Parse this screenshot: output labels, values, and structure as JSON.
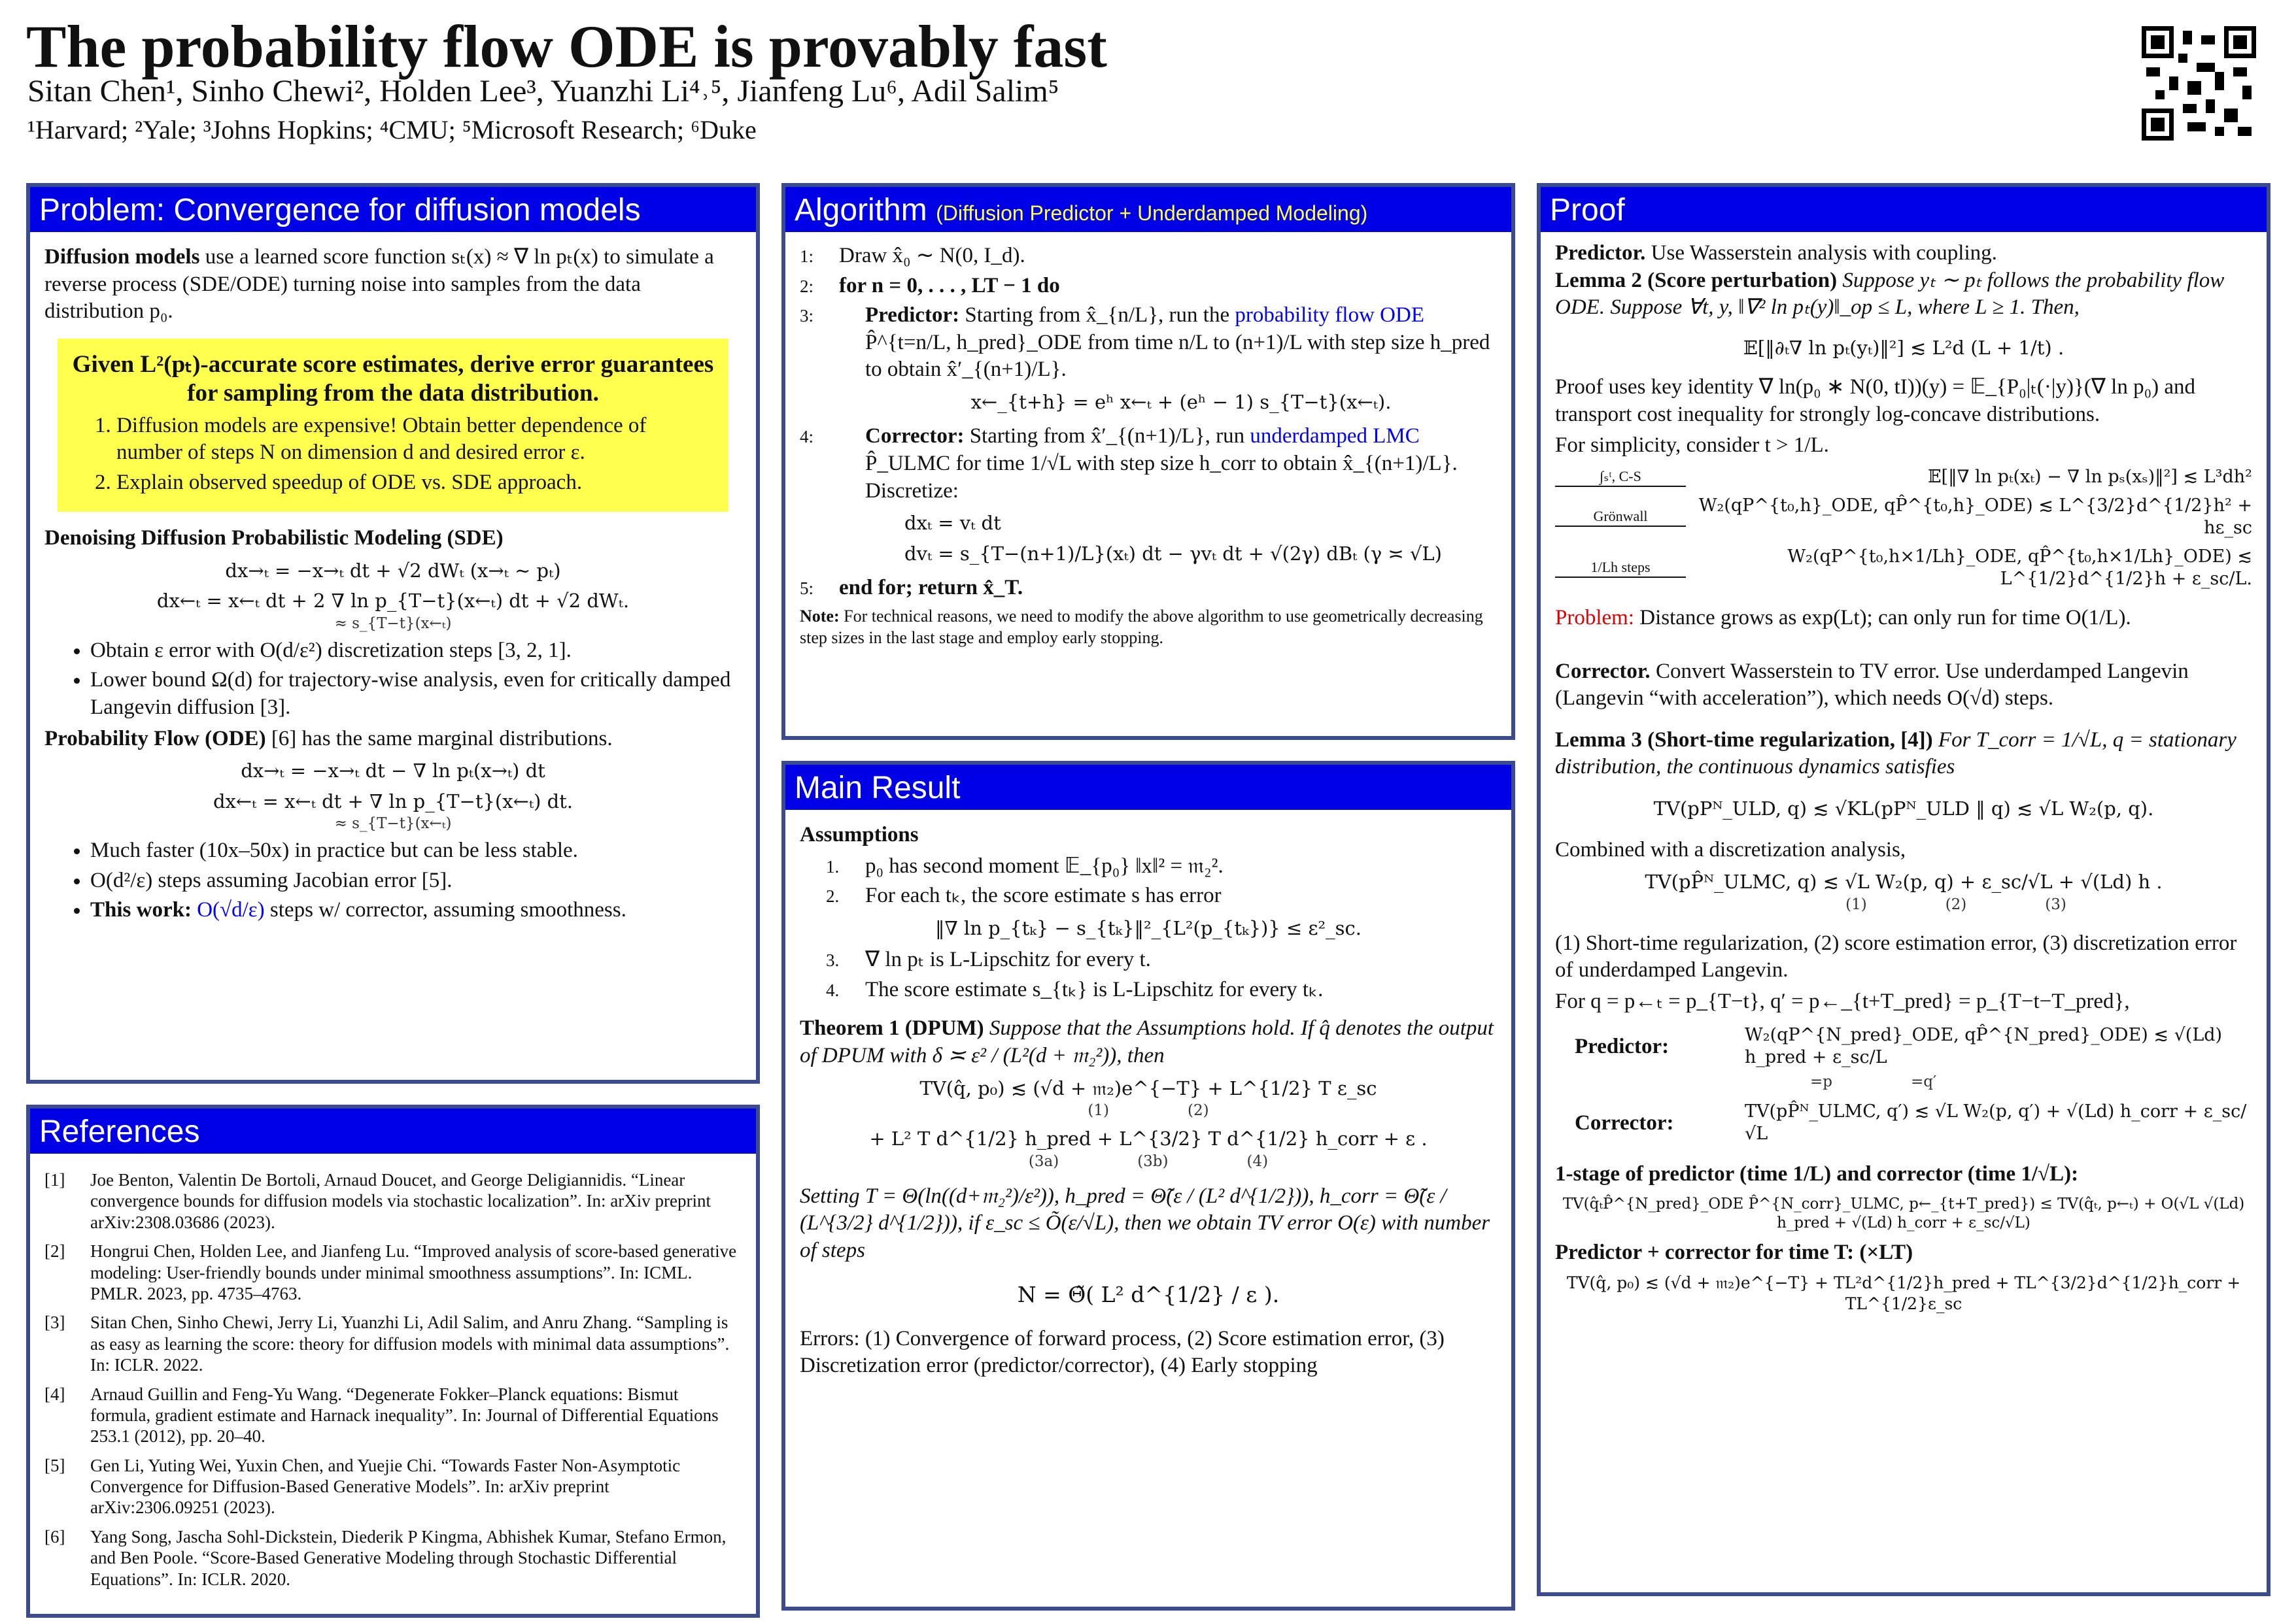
{
  "header": {
    "title": "The probability flow ODE is provably fast",
    "authors": "Sitan Chen¹, Sinho Chewi², Holden Lee³, Yuanzhi Li⁴˒⁵, Jianfeng Lu⁶, Adil Salim⁵",
    "affiliations": "¹Harvard; ²Yale; ³Johns Hopkins; ⁴CMU; ⁵Microsoft Research; ⁶Duke"
  },
  "problem": {
    "title": "Problem: Convergence for diffusion models",
    "intro_lead": "Diffusion models",
    "intro": "use a learned score function sₜ(x) ≈ ∇ ln pₜ(x) to simulate a reverse process (SDE/ODE) turning noise into samples from the data distribution p₀.",
    "highlight_heading": "Given L²(pₜ)-accurate score estimates, derive error guarantees for sampling from the data distribution.",
    "highlight_items": [
      "Diffusion models are expensive! Obtain better dependence of number of steps N on dimension d and desired error ε.",
      "Explain observed speedup of ODE vs. SDE approach."
    ],
    "ddpm_heading": "Denoising Diffusion Probabilistic Modeling (SDE)",
    "ddpm_equations": [
      "dx→ₜ = −x→ₜ dt + √2 dWₜ      (x→ₜ ∼ pₜ)",
      "dx←ₜ = x←ₜ dt + 2 ∇ ln p_{T−t}(x←ₜ) dt + √2 dWₜ."
    ],
    "ddpm_brace": "≈ s_{T−t}(x←ₜ)",
    "ddpm_bullets": [
      "Obtain ε error with O(d/ε²) discretization steps [3, 2, 1].",
      "Lower bound Ω(d) for trajectory-wise analysis, even for critically damped Langevin diffusion [3]."
    ],
    "pf_heading": "Probability Flow (ODE)",
    "pf_heading_rest": "[6] has the same marginal distributions.",
    "pf_equations": [
      "dx→ₜ = −x→ₜ dt − ∇ ln pₜ(x→ₜ) dt",
      "dx←ₜ = x←ₜ dt + ∇ ln p_{T−t}(x←ₜ) dt."
    ],
    "pf_brace": "≈ s_{T−t}(x←ₜ)",
    "pf_bullets": [
      "Much faster (10x–50x) in practice but can be less stable.",
      "O(d²/ε) steps assuming Jacobian error [5]."
    ],
    "this_work_lead": "This work:",
    "this_work_rate": "O(√d/ε)",
    "this_work_text": "steps w/ corrector, assuming smoothness."
  },
  "references": {
    "title": "References",
    "items": [
      {
        "number": "[1]",
        "text": "Joe Benton, Valentin De Bortoli, Arnaud Doucet, and George Deligiannidis. “Linear convergence bounds for diffusion models via stochastic localization”. In: arXiv preprint arXiv:2308.03686 (2023)."
      },
      {
        "number": "[2]",
        "text": "Hongrui Chen, Holden Lee, and Jianfeng Lu. “Improved analysis of score-based generative modeling: User-friendly bounds under minimal smoothness assumptions”. In: ICML. PMLR. 2023, pp. 4735–4763."
      },
      {
        "number": "[3]",
        "text": "Sitan Chen, Sinho Chewi, Jerry Li, Yuanzhi Li, Adil Salim, and Anru Zhang. “Sampling is as easy as learning the score: theory for diffusion models with minimal data assumptions”. In: ICLR. 2022."
      },
      {
        "number": "[4]",
        "text": "Arnaud Guillin and Feng-Yu Wang. “Degenerate Fokker–Planck equations: Bismut formula, gradient estimate and Harnack inequality”. In: Journal of Differential Equations 253.1 (2012), pp. 20–40."
      },
      {
        "number": "[5]",
        "text": "Gen Li, Yuting Wei, Yuxin Chen, and Yuejie Chi. “Towards Faster Non-Asymptotic Convergence for Diffusion-Based Generative Models”. In: arXiv preprint arXiv:2306.09251 (2023)."
      },
      {
        "number": "[6]",
        "text": "Yang Song, Jascha Sohl-Dickstein, Diederik P Kingma, Abhishek Kumar, Stefano Ermon, and Ben Poole. “Score-Based Generative Modeling through Stochastic Differential Equations”. In: ICLR. 2020."
      }
    ]
  },
  "algorithm": {
    "title": "Algorithm",
    "subtitle": "(Diffusion Predictor + Underdamped Modeling)",
    "line1": "Draw x̂₀ ∼ N(0, I_d).",
    "line2": "for n = 0, . . . , LT − 1 do",
    "line3_lead": "Predictor:",
    "line3_a": "Starting from x̂_{n/L}, run the",
    "line3_link": "probability flow ODE",
    "line3_b": "P̂^{t=n/L, h_pred}_ODE from time n/L to (n+1)/L with step size h_pred to obtain x̂′_{(n+1)/L}.",
    "line3_eq": "x←_{t+h} = eʰ x←ₜ + (eʰ − 1) s_{T−t}(x←ₜ).",
    "line4_lead": "Corrector:",
    "line4_a": "Starting from x̂′_{(n+1)/L}, run",
    "line4_link": "underdamped LMC",
    "line4_b": "P̂_ULMC for time 1/√L with step size h_corr to obtain x̂_{(n+1)/L}. Discretize:",
    "line4_equations": [
      "dxₜ = vₜ dt",
      "dvₜ = s_{T−(n+1)/L}(xₜ) dt − γvₜ dt + √(2γ) dBₜ     (γ ≍ √L)"
    ],
    "line5": "end for; return x̂_T.",
    "line_numbers": [
      "1:",
      "2:",
      "3:",
      "4:",
      "5:"
    ],
    "note_lead": "Note:",
    "note": "For technical reasons, we need to modify the above algorithm to use geometrically decreasing step sizes in the last stage and employ early stopping."
  },
  "main_result": {
    "title": "Main Result",
    "assumptions_heading": "Assumptions",
    "assumption_numbers": [
      "1.",
      "2.",
      "3.",
      "4."
    ],
    "assumptions": [
      "p₀ has second moment 𝔼_{p₀} ‖x‖² = 𝔪₂².",
      "For each tₖ, the score estimate s has error",
      "∇ ln pₜ is L-Lipschitz for every t.",
      "The score estimate s_{tₖ} is L-Lipschitz for every tₖ."
    ],
    "assumption_eq": "‖∇ ln p_{tₖ} − s_{tₖ}‖²_{L²(p_{tₖ})} ≤ ε²_sc.",
    "theorem_lead": "Theorem 1 (DPUM)",
    "theorem_text": "Suppose that the Assumptions hold. If q̂ denotes the output of DPUM with δ ≍ ε² / (L²(d + 𝔪₂²)), then",
    "theorem_eq1": "TV(q̂, p₀) ≲ (√d + 𝔪₂)e^{−T} + L^{1/2} T ε_sc",
    "theorem_labels1": [
      "(1)",
      "(2)"
    ],
    "theorem_eq2": "+ L² T d^{1/2} h_pred + L^{3/2} T d^{1/2} h_corr + ε .",
    "theorem_labels2": [
      "(3a)",
      "(3b)",
      "(4)"
    ],
    "setting": "Setting T = Θ(ln((d+𝔪₂²)/ε²)), h_pred = Θ̃(ε / (L² d^{1/2})), h_corr = Θ̃(ε / (L^{3/2} d^{1/2})), if ε_sc ≤ Õ(ε/√L), then we obtain TV error O(ε) with number of steps",
    "steps_eq": "N = Θ̃( L² d^{1/2} / ε ).",
    "errors": "Errors: (1) Convergence of forward process, (2) Score estimation error, (3) Discretization error (predictor/corrector), (4) Early stopping"
  },
  "proof": {
    "title": "Proof",
    "predictor_lead": "Predictor.",
    "predictor_text": "Use Wasserstein analysis with coupling.",
    "lemma2_lead": "Lemma 2 (Score perturbation)",
    "lemma2_text": "Suppose yₜ ∼ pₜ follows the probability flow ODE. Suppose ∀t, y, ‖∇² ln pₜ(y)‖_op ≤ L, where L ≥ 1. Then,",
    "lemma2_eq": "𝔼[‖∂ₜ∇ ln pₜ(yₜ)‖²] ≲ L²d (L + 1/t) .",
    "key_identity": "Proof uses key identity ∇ ln(p₀ ∗ N(0, tI))(y) = 𝔼_{P₀|ₜ(·|y)}(∇ ln p₀) and transport cost inequality for strongly log-concave distributions.",
    "simplicity": "For simplicity, consider t > 1/L.",
    "chain": [
      {
        "step": "∫ₛᵗ, C-S",
        "eq": "𝔼[‖∇ ln pₜ(xₜ) − ∇ ln pₛ(xₛ)‖²] ≲ L³dh²"
      },
      {
        "step": "Grönwall",
        "eq": "W₂(qP^{t₀,h}_ODE, qP̂^{t₀,h}_ODE) ≲ L^{3/2}d^{1/2}h² + hε_sc"
      },
      {
        "step": "1/Lh steps",
        "eq": "W₂(qP^{t₀,h×1/Lh}_ODE, qP̂^{t₀,h×1/Lh}_ODE) ≲ L^{1/2}d^{1/2}h + ε_sc/L."
      }
    ],
    "problem_lead": "Problem:",
    "problem_text": "Distance grows as exp(Lt); can only run for time O(1/L).",
    "corrector_lead": "Corrector.",
    "corrector_text": "Convert Wasserstein to TV error. Use underdamped Langevin (Langevin “with acceleration”), which needs O(√d) steps.",
    "lemma3_lead": "Lemma 3 (Short-time regularization, [4])",
    "lemma3_text": "For T_corr = 1/√L, q = stationary distribution, the continuous dynamics satisfies",
    "lemma3_eq": "TV(pPᴺ_ULD, q) ≲ √KL(pPᴺ_ULD ‖ q) ≲ √L W₂(p, q).",
    "combined": "Combined with a discretization analysis,",
    "combined_eq": "TV(pP̂ᴺ_ULMC, q) ≲ √L W₂(p, q) + ε_sc/√L + √(Ld) h .",
    "combined_labels": [
      "(1)",
      "(2)",
      "(3)"
    ],
    "explanation": "(1) Short-time regularization, (2) score estimation error, (3) discretization error of underdamped Langevin.",
    "for_q": "For q = p←ₜ = p_{T−t}, q′ = p←_{t+T_pred} = p_{T−t−T_pred},",
    "predictor_row_label": "Predictor:",
    "predictor_row_eq": "W₂(qP^{N_pred}_ODE, qP̂^{N_pred}_ODE) ≲ √(Ld) h_pred + ε_sc/L",
    "predictor_row_under": [
      "=p",
      "=q′"
    ],
    "corrector_row_label": "Corrector:",
    "corrector_row_eq": "TV(pP̂ᴺ_ULMC, q′) ≲ √L W₂(p, q′) + √(Ld) h_corr + ε_sc/√L",
    "one_stage": "1-stage of predictor (time 1/L) and corrector (time 1/√L):",
    "one_stage_eq": "TV(q̂ₜP̂^{N_pred}_ODE P̂^{N_corr}_ULMC, p←_{t+T_pred}) ≤ TV(q̂ₜ, p←ₜ) + O(√L √(Ld) h_pred + √(Ld) h_corr + ε_sc/√L)",
    "total": "Predictor + corrector for time T: (×LT)",
    "total_eq": "TV(q̂, p₀) ≲ (√d + 𝔪₂)e^{−T} + TL²d^{1/2}h_pred + TL^{3/2}d^{1/2}h_corr + TL^{1/2}ε_sc"
  }
}
